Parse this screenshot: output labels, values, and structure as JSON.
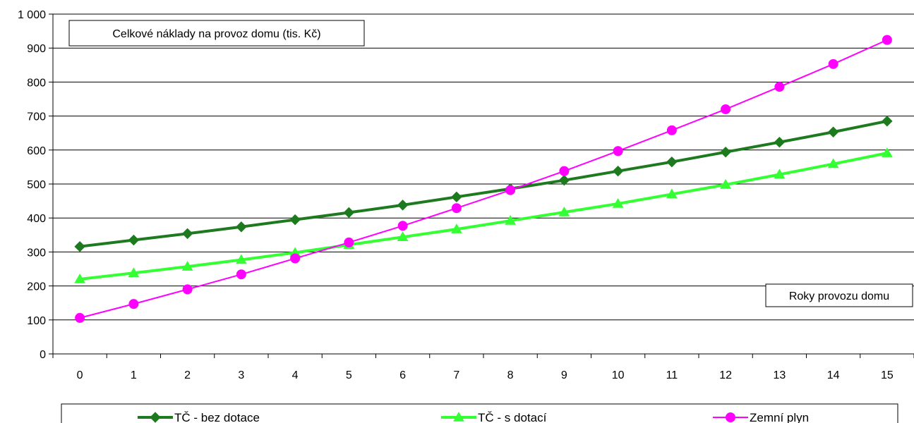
{
  "chart_data": {
    "type": "line",
    "title": "Celkové náklady na provoz domu (tis. Kč)",
    "xlabel": "Roky provozu domu",
    "ylabel": "",
    "x": [
      0,
      1,
      2,
      3,
      4,
      5,
      6,
      7,
      8,
      9,
      10,
      11,
      12,
      13,
      14,
      15
    ],
    "ylim": [
      0,
      1000
    ],
    "yticks": [
      0,
      100,
      200,
      300,
      400,
      500,
      600,
      700,
      800,
      900,
      1000
    ],
    "ytick_labels": [
      "0",
      "100",
      "200",
      "300",
      "400",
      "500",
      "600",
      "700",
      "800",
      "900",
      "1 000"
    ],
    "grid": true,
    "legend_position": "bottom",
    "series": [
      {
        "name": "TČ - bez dotace",
        "color": "#1e7a1e",
        "marker": "diamond",
        "values": [
          316,
          335,
          354,
          374,
          395,
          416,
          438,
          462,
          486,
          511,
          538,
          565,
          594,
          623,
          653,
          685
        ]
      },
      {
        "name": "TČ - s dotací",
        "color": "#33ff33",
        "marker": "triangle",
        "values": [
          220,
          238,
          257,
          277,
          298,
          321,
          344,
          367,
          392,
          417,
          442,
          470,
          498,
          528,
          559,
          591
        ]
      },
      {
        "name": "Zemní plyn",
        "color": "#ff00ff",
        "marker": "circle",
        "values": [
          106,
          147,
          190,
          234,
          281,
          328,
          377,
          429,
          482,
          538,
          597,
          658,
          720,
          786,
          853,
          924
        ]
      }
    ]
  }
}
